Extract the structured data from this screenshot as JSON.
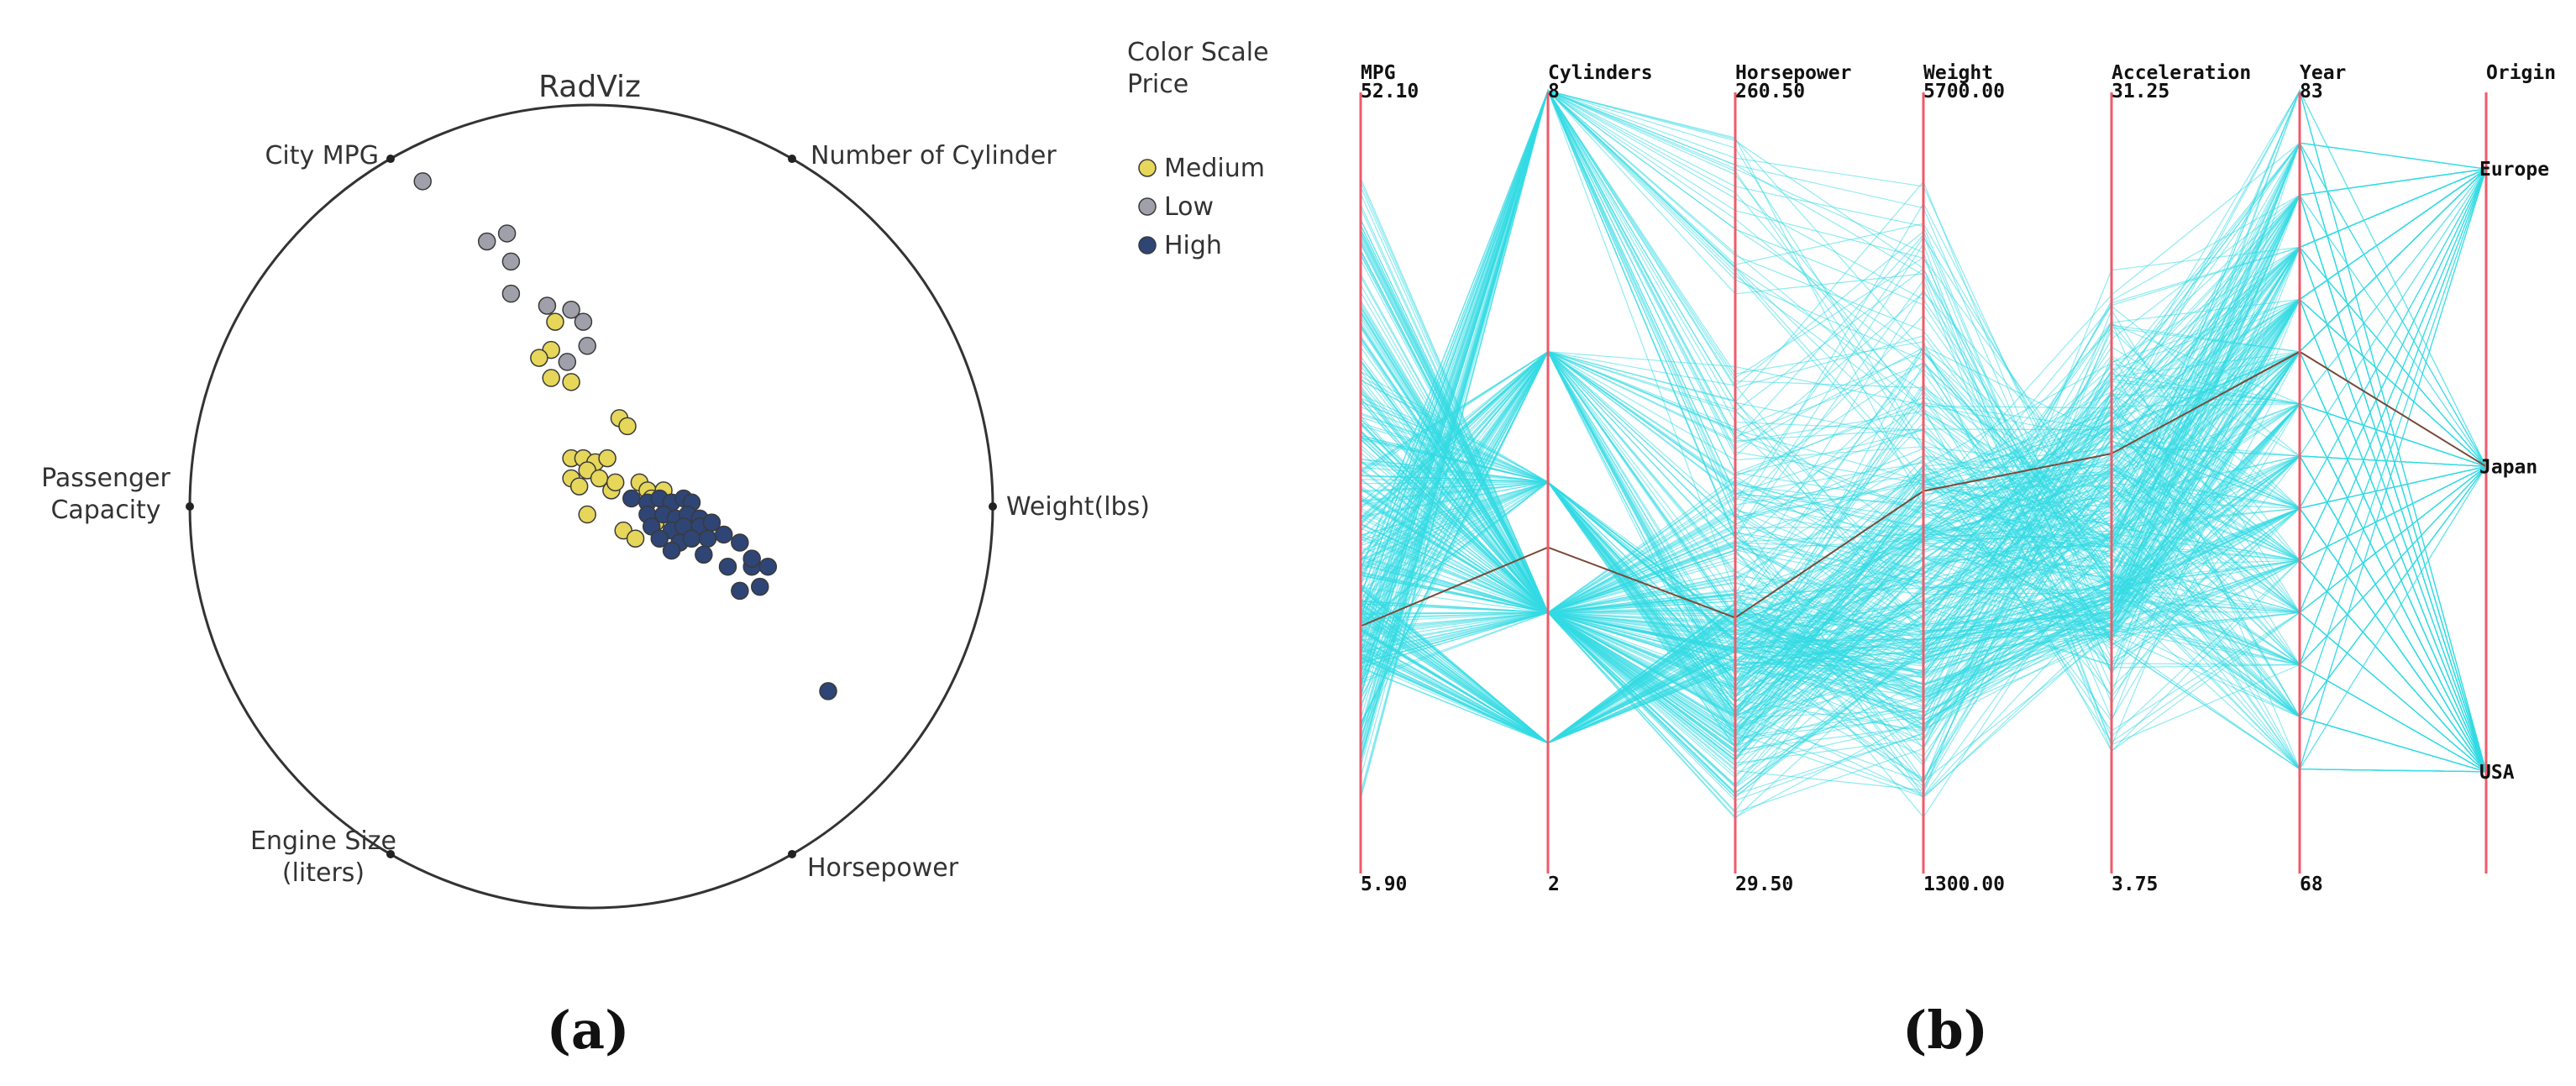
{
  "panels": [
    {
      "label": "(a)"
    },
    {
      "label": "(b)"
    }
  ],
  "colors": {
    "Medium": "#e6d659",
    "Low": "#9fa0aa",
    "High": "#2e4576",
    "line_background": "#33dbe3",
    "line_highlight": "#7a4a3a",
    "axis": "#ef5a6a"
  },
  "chart_data": [
    {
      "type": "scatter",
      "title": "RadViz",
      "anchors": [
        "City MPG",
        "Number of Cylinder",
        "Weight(lbs)",
        "Horsepower",
        "Engine Size (liters)",
        "Passenger Capacity"
      ],
      "legend": {
        "title": [
          "Color Scale",
          "Price"
        ],
        "entries": [
          "Medium",
          "Low",
          "High"
        ],
        "placement": "right"
      },
      "series": [
        {
          "name": "Low",
          "points": [
            [
              -0.42,
              0.81
            ],
            [
              -0.26,
              0.66
            ],
            [
              -0.21,
              0.68
            ],
            [
              -0.2,
              0.61
            ],
            [
              -0.2,
              0.53
            ],
            [
              -0.11,
              0.5
            ],
            [
              -0.05,
              0.49
            ],
            [
              -0.02,
              0.46
            ],
            [
              -0.01,
              0.4
            ],
            [
              -0.06,
              0.36
            ]
          ]
        },
        {
          "name": "Medium",
          "points": [
            [
              -0.09,
              0.46
            ],
            [
              -0.1,
              0.39
            ],
            [
              -0.13,
              0.37
            ],
            [
              -0.1,
              0.32
            ],
            [
              -0.05,
              0.31
            ],
            [
              0.07,
              0.22
            ],
            [
              0.09,
              0.2
            ],
            [
              -0.05,
              0.12
            ],
            [
              -0.02,
              0.12
            ],
            [
              0.01,
              0.11
            ],
            [
              0.04,
              0.12
            ],
            [
              -0.01,
              0.09
            ],
            [
              -0.05,
              0.07
            ],
            [
              0.02,
              0.07
            ],
            [
              -0.03,
              0.05
            ],
            [
              0.05,
              0.04
            ],
            [
              0.06,
              0.06
            ],
            [
              0.12,
              0.06
            ],
            [
              0.14,
              0.04
            ],
            [
              0.18,
              0.04
            ],
            [
              0.15,
              0.02
            ],
            [
              -0.01,
              -0.02
            ],
            [
              0.16,
              -0.04
            ],
            [
              0.08,
              -0.06
            ],
            [
              0.11,
              -0.08
            ]
          ]
        },
        {
          "name": "High",
          "points": [
            [
              0.1,
              0.02
            ],
            [
              0.14,
              0.01
            ],
            [
              0.17,
              0.02
            ],
            [
              0.2,
              0.01
            ],
            [
              0.23,
              0.02
            ],
            [
              0.25,
              0.01
            ],
            [
              0.14,
              -0.02
            ],
            [
              0.18,
              -0.02
            ],
            [
              0.21,
              -0.03
            ],
            [
              0.24,
              -0.02
            ],
            [
              0.27,
              -0.03
            ],
            [
              0.15,
              -0.05
            ],
            [
              0.2,
              -0.06
            ],
            [
              0.23,
              -0.05
            ],
            [
              0.27,
              -0.05
            ],
            [
              0.3,
              -0.04
            ],
            [
              0.17,
              -0.08
            ],
            [
              0.22,
              -0.09
            ],
            [
              0.25,
              -0.08
            ],
            [
              0.29,
              -0.08
            ],
            [
              0.33,
              -0.07
            ],
            [
              0.37,
              -0.09
            ],
            [
              0.2,
              -0.11
            ],
            [
              0.28,
              -0.12
            ],
            [
              0.34,
              -0.15
            ],
            [
              0.4,
              -0.15
            ],
            [
              0.44,
              -0.15
            ],
            [
              0.4,
              -0.13
            ],
            [
              0.37,
              -0.21
            ],
            [
              0.42,
              -0.2
            ],
            [
              0.59,
              -0.46
            ]
          ]
        }
      ]
    },
    {
      "type": "line",
      "subtype": "parallel-coordinates",
      "axes": [
        {
          "name": "MPG",
          "max": "52.10",
          "min": "5.90",
          "range": [
            5.9,
            52.1
          ]
        },
        {
          "name": "Cylinders",
          "max": "8",
          "min": "2",
          "range": [
            2,
            8
          ]
        },
        {
          "name": "Horsepower",
          "max": "260.50",
          "min": "29.50",
          "range": [
            29.5,
            260.5
          ]
        },
        {
          "name": "Weight",
          "max": "5700.00",
          "min": "1300.00",
          "range": [
            1300,
            5700
          ]
        },
        {
          "name": "Acceleration",
          "max": "31.25",
          "min": "3.75",
          "range": [
            3.75,
            31.25
          ]
        },
        {
          "name": "Year",
          "max": "83",
          "min": "68",
          "range": [
            68,
            83
          ]
        },
        {
          "name": "Origin",
          "categories": [
            "Europe",
            "Japan",
            "USA"
          ],
          "category_levels": [
            0.9,
            0.52,
            0.13
          ]
        }
      ],
      "highlighted_record": {
        "MPG": 20.5,
        "Cylinders": 4.5,
        "Horsepower": 105,
        "Weight": 3450,
        "Acceleration": 18.5,
        "Year": 78,
        "Origin": "Japan"
      },
      "record_groups": [
        {
          "Cylinders": 8,
          "Horsepower": [
            110,
            250
          ],
          "Weight": [
            3300,
            5300
          ],
          "Acceleration": [
            8,
            17
          ],
          "Year": [
            70,
            83
          ],
          "Origin": "USA",
          "MPG": [
            9,
            24
          ]
        },
        {
          "Cylinders": 6,
          "Horsepower": [
            70,
            180
          ],
          "Weight": [
            2500,
            4300
          ],
          "Acceleration": [
            11,
            21
          ],
          "Year": [
            70,
            83
          ],
          "Origin": "USA",
          "MPG": [
            14,
            30
          ]
        },
        {
          "Cylinders": 4,
          "Horsepower": [
            45,
            140
          ],
          "Weight": [
            1600,
            3400
          ],
          "Acceleration": [
            12,
            24.5
          ],
          "Year": [
            70,
            83
          ],
          "Origin": "Japan",
          "MPG": [
            18,
            47
          ]
        },
        {
          "Cylinders": 4,
          "Horsepower": [
            45,
            130
          ],
          "Weight": [
            1700,
            3300
          ],
          "Acceleration": [
            12,
            25
          ],
          "Year": [
            70,
            83
          ],
          "Origin": "Europe",
          "MPG": [
            18,
            45
          ]
        },
        {
          "Cylinders": 4,
          "Horsepower": [
            60,
            150
          ],
          "Weight": [
            2000,
            3600
          ],
          "Acceleration": [
            12,
            22
          ],
          "Year": [
            70,
            83
          ],
          "Origin": "USA",
          "MPG": [
            17,
            40
          ]
        },
        {
          "Cylinders": 3,
          "Horsepower": [
            90,
            110
          ],
          "Weight": [
            2100,
            2700
          ],
          "Acceleration": [
            12,
            14
          ],
          "Year": [
            72,
            80
          ],
          "Origin": "Japan",
          "MPG": [
            18,
            23
          ]
        },
        {
          "Cylinders": 5,
          "Horsepower": [
            65,
            105
          ],
          "Weight": [
            2800,
            3600
          ],
          "Acceleration": [
            15,
            20
          ],
          "Year": [
            78,
            81
          ],
          "Origin": "Europe",
          "MPG": [
            20,
            36
          ]
        }
      ]
    }
  ]
}
